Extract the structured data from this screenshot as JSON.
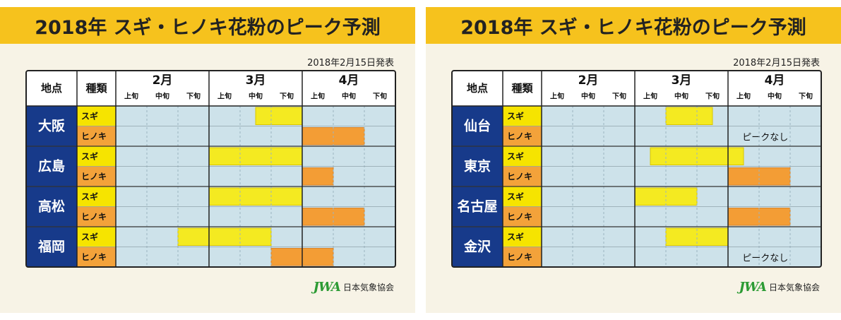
{
  "charts": [
    {
      "title": "2018年 スギ・ヒノキ花粉のピーク予測",
      "date": "2018年2月15日発表",
      "org": "日本気象協会",
      "logo_text": "JWA",
      "header": {
        "place": "地点",
        "type": "種類"
      },
      "months": [
        "2月",
        "3月",
        "4月"
      ],
      "periods": [
        "上旬",
        "中旬",
        "下旬"
      ],
      "types": [
        "スギ",
        "ヒノキ"
      ],
      "cities": [
        {
          "name": "大阪",
          "rows": [
            {
              "type": "スギ",
              "start": 4.5,
              "end": 6
            },
            {
              "type": "ヒノキ",
              "start": 6,
              "end": 8
            }
          ]
        },
        {
          "name": "広島",
          "rows": [
            {
              "type": "スギ",
              "start": 3,
              "end": 6
            },
            {
              "type": "ヒノキ",
              "start": 6,
              "end": 7
            }
          ]
        },
        {
          "name": "高松",
          "rows": [
            {
              "type": "スギ",
              "start": 3,
              "end": 6
            },
            {
              "type": "ヒノキ",
              "start": 6,
              "end": 8
            }
          ]
        },
        {
          "name": "福岡",
          "rows": [
            {
              "type": "スギ",
              "start": 2,
              "end": 5
            },
            {
              "type": "ヒノキ",
              "start": 5,
              "end": 7
            }
          ]
        }
      ]
    },
    {
      "title": "2018年 スギ・ヒノキ花粉のピーク予測",
      "date": "2018年2月15日発表",
      "org": "日本気象協会",
      "logo_text": "JWA",
      "header": {
        "place": "地点",
        "type": "種類"
      },
      "months": [
        "2月",
        "3月",
        "4月"
      ],
      "periods": [
        "上旬",
        "中旬",
        "下旬"
      ],
      "types": [
        "スギ",
        "ヒノキ"
      ],
      "cities": [
        {
          "name": "仙台",
          "rows": [
            {
              "type": "スギ",
              "start": 4,
              "end": 5.5
            },
            {
              "type": "ヒノキ",
              "note": "ピークなし"
            }
          ]
        },
        {
          "name": "東京",
          "rows": [
            {
              "type": "スギ",
              "start": 3.5,
              "end": 6.5
            },
            {
              "type": "ヒノキ",
              "start": 6,
              "end": 8
            }
          ]
        },
        {
          "name": "名古屋",
          "rows": [
            {
              "type": "スギ",
              "start": 3,
              "end": 5
            },
            {
              "type": "ヒノキ",
              "start": 6,
              "end": 8
            }
          ]
        },
        {
          "name": "金沢",
          "rows": [
            {
              "type": "スギ",
              "start": 4,
              "end": 6
            },
            {
              "type": "ヒノキ",
              "note": "ピークなし"
            }
          ]
        }
      ]
    }
  ],
  "colors": {
    "title_bar": "#f6c21d",
    "city_bg": "#173a8a",
    "sugi_label": "#f6e400",
    "hinoki_label": "#f3a23a",
    "grid_bg": "#cde2ea",
    "sugi_bar": "#f4ea21",
    "hinoki_bar": "#f39d35"
  },
  "chart_data": [
    {
      "type": "table",
      "title": "2018年 スギ・ヒノキ花粉のピーク予測",
      "x_axis": [
        "2月上旬",
        "2月中旬",
        "2月下旬",
        "3月上旬",
        "3月中旬",
        "3月下旬",
        "4月上旬",
        "4月中旬",
        "4月下旬"
      ],
      "series": [
        {
          "city": "大阪",
          "type": "スギ",
          "start": "3月中旬",
          "end": "3月下旬"
        },
        {
          "city": "大阪",
          "type": "ヒノキ",
          "start": "4月上旬",
          "end": "4月中旬"
        },
        {
          "city": "広島",
          "type": "スギ",
          "start": "3月上旬",
          "end": "3月下旬"
        },
        {
          "city": "広島",
          "type": "ヒノキ",
          "start": "4月上旬",
          "end": "4月上旬"
        },
        {
          "city": "高松",
          "type": "スギ",
          "start": "3月上旬",
          "end": "3月下旬"
        },
        {
          "city": "高松",
          "type": "ヒノキ",
          "start": "4月上旬",
          "end": "4月中旬"
        },
        {
          "city": "福岡",
          "type": "スギ",
          "start": "2月下旬",
          "end": "3月中旬"
        },
        {
          "city": "福岡",
          "type": "ヒノキ",
          "start": "3月下旬",
          "end": "4月上旬"
        }
      ]
    },
    {
      "type": "table",
      "title": "2018年 スギ・ヒノキ花粉のピーク予測",
      "x_axis": [
        "2月上旬",
        "2月中旬",
        "2月下旬",
        "3月上旬",
        "3月中旬",
        "3月下旬",
        "4月上旬",
        "4月中旬",
        "4月下旬"
      ],
      "series": [
        {
          "city": "仙台",
          "type": "スギ",
          "start": "3月中旬",
          "end": "3月下旬"
        },
        {
          "city": "仙台",
          "type": "ヒノキ",
          "note": "ピークなし"
        },
        {
          "city": "東京",
          "type": "スギ",
          "start": "3月上旬",
          "end": "4月上旬"
        },
        {
          "city": "東京",
          "type": "ヒノキ",
          "start": "4月上旬",
          "end": "4月中旬"
        },
        {
          "city": "名古屋",
          "type": "スギ",
          "start": "3月上旬",
          "end": "3月中旬"
        },
        {
          "city": "名古屋",
          "type": "ヒノキ",
          "start": "4月上旬",
          "end": "4月中旬"
        },
        {
          "city": "金沢",
          "type": "スギ",
          "start": "3月中旬",
          "end": "3月下旬"
        },
        {
          "city": "金沢",
          "type": "ヒノキ",
          "note": "ピークなし"
        }
      ]
    }
  ]
}
